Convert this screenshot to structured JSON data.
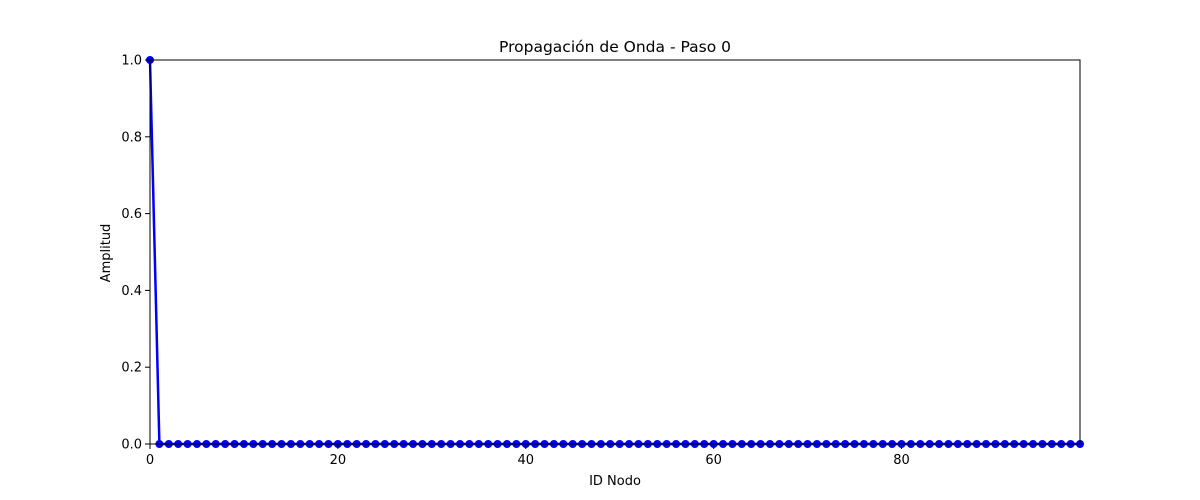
{
  "chart_data": {
    "type": "line",
    "title": "Propagación de Onda - Paso 0",
    "xlabel": "ID Nodo",
    "ylabel": "Amplitud",
    "xlim": [
      0,
      99
    ],
    "ylim": [
      0,
      1.0
    ],
    "x_ticks": [
      0,
      20,
      40,
      60,
      80
    ],
    "y_ticks": [
      0.0,
      0.2,
      0.4,
      0.6,
      0.8,
      1.0
    ],
    "grid": false,
    "legend": "none",
    "series": [
      {
        "color": "#0000ff",
        "marker": "circle",
        "x": [
          0,
          1,
          2,
          3,
          4,
          5,
          6,
          7,
          8,
          9,
          10,
          11,
          12,
          13,
          14,
          15,
          16,
          17,
          18,
          19,
          20,
          21,
          22,
          23,
          24,
          25,
          26,
          27,
          28,
          29,
          30,
          31,
          32,
          33,
          34,
          35,
          36,
          37,
          38,
          39,
          40,
          41,
          42,
          43,
          44,
          45,
          46,
          47,
          48,
          49,
          50,
          51,
          52,
          53,
          54,
          55,
          56,
          57,
          58,
          59,
          60,
          61,
          62,
          63,
          64,
          65,
          66,
          67,
          68,
          69,
          70,
          71,
          72,
          73,
          74,
          75,
          76,
          77,
          78,
          79,
          80,
          81,
          82,
          83,
          84,
          85,
          86,
          87,
          88,
          89,
          90,
          91,
          92,
          93,
          94,
          95,
          96,
          97,
          98,
          99
        ],
        "y": [
          1.0,
          0.0,
          0.0,
          0.0,
          0.0,
          0.0,
          0.0,
          0.0,
          0.0,
          0.0,
          0.0,
          0.0,
          0.0,
          0.0,
          0.0,
          0.0,
          0.0,
          0.0,
          0.0,
          0.0,
          0.0,
          0.0,
          0.0,
          0.0,
          0.0,
          0.0,
          0.0,
          0.0,
          0.0,
          0.0,
          0.0,
          0.0,
          0.0,
          0.0,
          0.0,
          0.0,
          0.0,
          0.0,
          0.0,
          0.0,
          0.0,
          0.0,
          0.0,
          0.0,
          0.0,
          0.0,
          0.0,
          0.0,
          0.0,
          0.0,
          0.0,
          0.0,
          0.0,
          0.0,
          0.0,
          0.0,
          0.0,
          0.0,
          0.0,
          0.0,
          0.0,
          0.0,
          0.0,
          0.0,
          0.0,
          0.0,
          0.0,
          0.0,
          0.0,
          0.0,
          0.0,
          0.0,
          0.0,
          0.0,
          0.0,
          0.0,
          0.0,
          0.0,
          0.0,
          0.0,
          0.0,
          0.0,
          0.0,
          0.0,
          0.0,
          0.0,
          0.0,
          0.0,
          0.0,
          0.0,
          0.0,
          0.0,
          0.0,
          0.0,
          0.0,
          0.0,
          0.0,
          0.0,
          0.0,
          0.0
        ]
      }
    ]
  }
}
